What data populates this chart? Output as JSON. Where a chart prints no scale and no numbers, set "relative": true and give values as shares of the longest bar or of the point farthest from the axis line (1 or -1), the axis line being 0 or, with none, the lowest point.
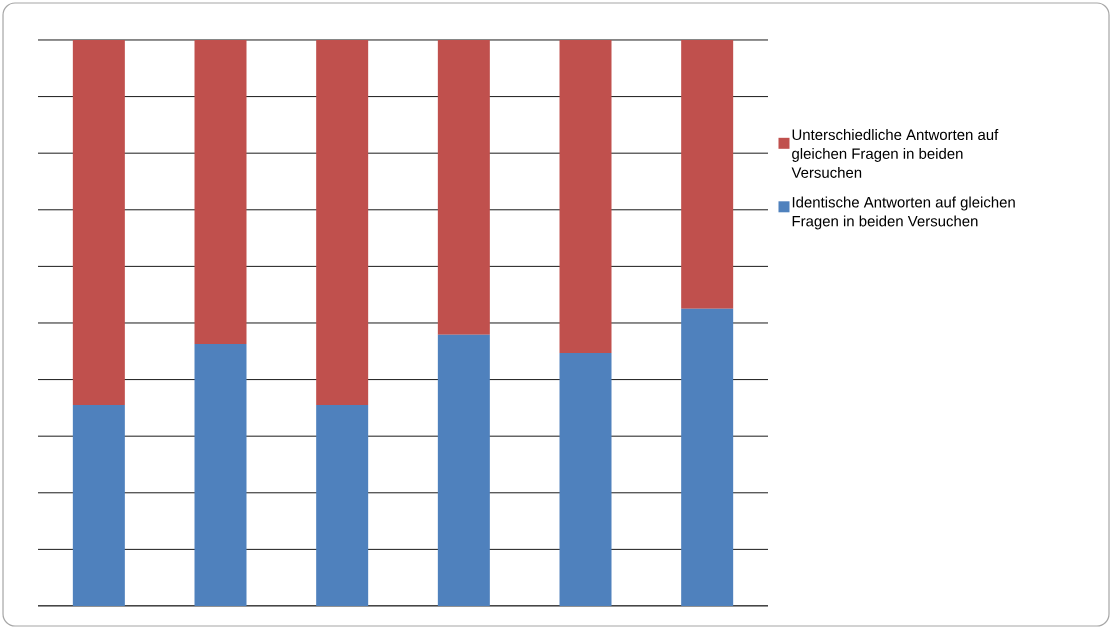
{
  "chart_data": {
    "type": "bar",
    "stacked": true,
    "relative": true,
    "grid": "y",
    "legend": "right",
    "categories": [
      null,
      null,
      null,
      null,
      null,
      null
    ],
    "series": [
      {
        "name": "Identische Antworten auf gleichen Fragen in beiden Versuchen",
        "color": "#4f81bd",
        "values": [
          0.355,
          0.463,
          0.355,
          0.479,
          0.447,
          0.525
        ]
      },
      {
        "name": "Unterschiedliche Antworten auf gleichen Fragen in beiden Versuchen",
        "color": "#c0504d",
        "values": [
          0.645,
          0.537,
          0.645,
          0.521,
          0.553,
          0.475
        ]
      }
    ]
  }
}
